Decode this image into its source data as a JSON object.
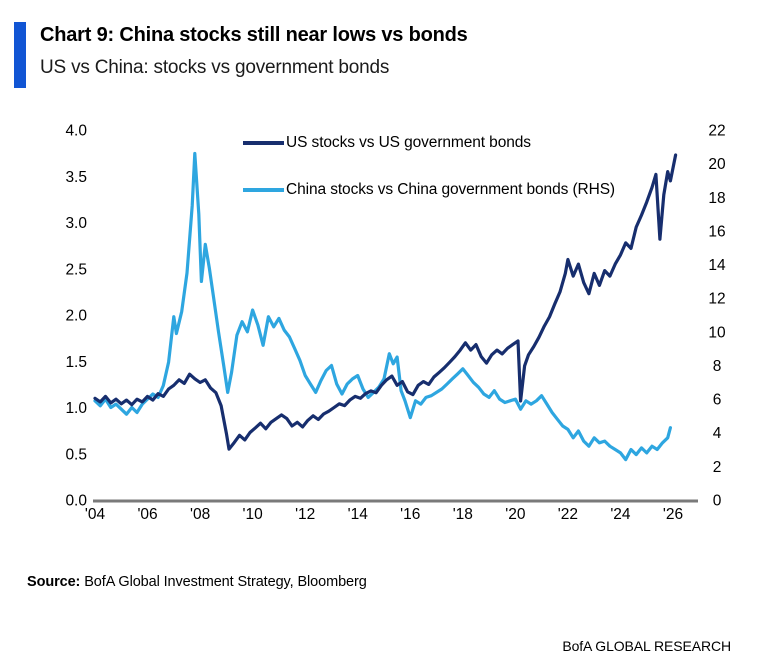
{
  "header": {
    "title": "Chart 9: China stocks still near lows vs bonds",
    "subtitle": "US vs China: stocks vs government bonds",
    "accent_color": "#1155D4"
  },
  "chart_data": {
    "type": "line",
    "grid": false,
    "legend_position": "top-center",
    "axis_line_color": "#7a7a7a",
    "left_axis": {
      "range": [
        0,
        4
      ],
      "ticks": [
        {
          "label": "0.0",
          "value": 0.0
        },
        {
          "label": "0.5",
          "value": 0.5
        },
        {
          "label": "1.0",
          "value": 1.0
        },
        {
          "label": "1.5",
          "value": 1.5
        },
        {
          "label": "2.0",
          "value": 2.0
        },
        {
          "label": "2.5",
          "value": 2.5
        },
        {
          "label": "3.0",
          "value": 3.0
        },
        {
          "label": "3.5",
          "value": 3.5
        },
        {
          "label": "4.0",
          "value": 4.0
        }
      ]
    },
    "right_axis": {
      "range": [
        0,
        22
      ],
      "ticks": [
        {
          "label": "0",
          "value": 0
        },
        {
          "label": "2",
          "value": 2
        },
        {
          "label": "4",
          "value": 4
        },
        {
          "label": "6",
          "value": 6
        },
        {
          "label": "8",
          "value": 8
        },
        {
          "label": "10",
          "value": 10
        },
        {
          "label": "12",
          "value": 12
        },
        {
          "label": "14",
          "value": 14
        },
        {
          "label": "16",
          "value": 16
        },
        {
          "label": "18",
          "value": 18
        },
        {
          "label": "20",
          "value": 20
        },
        {
          "label": "22",
          "value": 22
        }
      ]
    },
    "x_axis": {
      "range": [
        2004,
        2026
      ],
      "ticks": [
        {
          "label": "'04",
          "year": 2004
        },
        {
          "label": "'06",
          "year": 2006
        },
        {
          "label": "'08",
          "year": 2008
        },
        {
          "label": "'10",
          "year": 2010
        },
        {
          "label": "'12",
          "year": 2012
        },
        {
          "label": "'14",
          "year": 2014
        },
        {
          "label": "'16",
          "year": 2016
        },
        {
          "label": "'18",
          "year": 2018
        },
        {
          "label": "'20",
          "year": 2020
        },
        {
          "label": "'22",
          "year": 2022
        },
        {
          "label": "'24",
          "year": 2024
        },
        {
          "label": "'26",
          "year": 2026
        }
      ]
    },
    "series": [
      {
        "id": "us-stocks-vs-us-government-bonds",
        "name": "US stocks vs US government bonds",
        "axis": "left",
        "color": "#172E6E",
        "points": [
          [
            2004.0,
            1.1
          ],
          [
            2004.2,
            1.06
          ],
          [
            2004.4,
            1.12
          ],
          [
            2004.6,
            1.05
          ],
          [
            2004.8,
            1.09
          ],
          [
            2005.0,
            1.04
          ],
          [
            2005.2,
            1.08
          ],
          [
            2005.4,
            1.03
          ],
          [
            2005.6,
            1.09
          ],
          [
            2005.8,
            1.06
          ],
          [
            2006.0,
            1.12
          ],
          [
            2006.2,
            1.08
          ],
          [
            2006.4,
            1.15
          ],
          [
            2006.6,
            1.12
          ],
          [
            2006.8,
            1.2
          ],
          [
            2007.0,
            1.24
          ],
          [
            2007.2,
            1.3
          ],
          [
            2007.4,
            1.26
          ],
          [
            2007.6,
            1.36
          ],
          [
            2007.8,
            1.31
          ],
          [
            2008.0,
            1.27
          ],
          [
            2008.2,
            1.3
          ],
          [
            2008.4,
            1.21
          ],
          [
            2008.6,
            1.16
          ],
          [
            2008.8,
            1.02
          ],
          [
            2009.0,
            0.72
          ],
          [
            2009.1,
            0.55
          ],
          [
            2009.3,
            0.62
          ],
          [
            2009.5,
            0.7
          ],
          [
            2009.7,
            0.65
          ],
          [
            2009.9,
            0.73
          ],
          [
            2010.1,
            0.78
          ],
          [
            2010.3,
            0.83
          ],
          [
            2010.5,
            0.77
          ],
          [
            2010.7,
            0.84
          ],
          [
            2010.9,
            0.88
          ],
          [
            2011.1,
            0.92
          ],
          [
            2011.3,
            0.88
          ],
          [
            2011.5,
            0.8
          ],
          [
            2011.7,
            0.84
          ],
          [
            2011.9,
            0.79
          ],
          [
            2012.1,
            0.86
          ],
          [
            2012.3,
            0.91
          ],
          [
            2012.5,
            0.87
          ],
          [
            2012.7,
            0.93
          ],
          [
            2012.9,
            0.96
          ],
          [
            2013.1,
            1.0
          ],
          [
            2013.3,
            1.04
          ],
          [
            2013.5,
            1.02
          ],
          [
            2013.7,
            1.08
          ],
          [
            2013.9,
            1.12
          ],
          [
            2014.1,
            1.1
          ],
          [
            2014.3,
            1.15
          ],
          [
            2014.5,
            1.18
          ],
          [
            2014.7,
            1.16
          ],
          [
            2014.9,
            1.24
          ],
          [
            2015.1,
            1.3
          ],
          [
            2015.3,
            1.34
          ],
          [
            2015.5,
            1.24
          ],
          [
            2015.7,
            1.28
          ],
          [
            2015.9,
            1.17
          ],
          [
            2016.1,
            1.14
          ],
          [
            2016.3,
            1.24
          ],
          [
            2016.5,
            1.28
          ],
          [
            2016.7,
            1.25
          ],
          [
            2016.9,
            1.33
          ],
          [
            2017.1,
            1.38
          ],
          [
            2017.3,
            1.43
          ],
          [
            2017.5,
            1.49
          ],
          [
            2017.7,
            1.55
          ],
          [
            2017.9,
            1.62
          ],
          [
            2018.1,
            1.7
          ],
          [
            2018.3,
            1.62
          ],
          [
            2018.5,
            1.68
          ],
          [
            2018.7,
            1.55
          ],
          [
            2018.9,
            1.48
          ],
          [
            2019.1,
            1.57
          ],
          [
            2019.3,
            1.62
          ],
          [
            2019.5,
            1.58
          ],
          [
            2019.7,
            1.64
          ],
          [
            2019.9,
            1.68
          ],
          [
            2020.1,
            1.72
          ],
          [
            2020.2,
            1.07
          ],
          [
            2020.35,
            1.45
          ],
          [
            2020.5,
            1.57
          ],
          [
            2020.7,
            1.66
          ],
          [
            2020.9,
            1.76
          ],
          [
            2021.1,
            1.88
          ],
          [
            2021.3,
            1.98
          ],
          [
            2021.5,
            2.12
          ],
          [
            2021.7,
            2.25
          ],
          [
            2021.9,
            2.45
          ],
          [
            2022.0,
            2.6
          ],
          [
            2022.2,
            2.42
          ],
          [
            2022.4,
            2.55
          ],
          [
            2022.6,
            2.35
          ],
          [
            2022.8,
            2.23
          ],
          [
            2023.0,
            2.45
          ],
          [
            2023.2,
            2.32
          ],
          [
            2023.4,
            2.48
          ],
          [
            2023.6,
            2.42
          ],
          [
            2023.8,
            2.55
          ],
          [
            2024.0,
            2.65
          ],
          [
            2024.2,
            2.78
          ],
          [
            2024.4,
            2.72
          ],
          [
            2024.6,
            2.95
          ],
          [
            2024.8,
            3.08
          ],
          [
            2025.0,
            3.22
          ],
          [
            2025.2,
            3.38
          ],
          [
            2025.35,
            3.52
          ],
          [
            2025.5,
            2.82
          ],
          [
            2025.65,
            3.3
          ],
          [
            2025.8,
            3.55
          ],
          [
            2025.9,
            3.45
          ],
          [
            2026.1,
            3.73
          ]
        ]
      },
      {
        "id": "china-stocks-vs-china-government-bonds",
        "name": "China stocks vs China government bonds (RHS)",
        "axis": "right",
        "color": "#2EA6E0",
        "points": [
          [
            2004.0,
            5.9
          ],
          [
            2004.2,
            5.6
          ],
          [
            2004.4,
            6.0
          ],
          [
            2004.6,
            5.5
          ],
          [
            2004.8,
            5.7
          ],
          [
            2005.0,
            5.4
          ],
          [
            2005.2,
            5.1
          ],
          [
            2005.4,
            5.5
          ],
          [
            2005.6,
            5.2
          ],
          [
            2005.8,
            5.7
          ],
          [
            2006.0,
            6.0
          ],
          [
            2006.2,
            6.3
          ],
          [
            2006.4,
            6.1
          ],
          [
            2006.6,
            6.8
          ],
          [
            2006.8,
            8.2
          ],
          [
            2007.0,
            10.9
          ],
          [
            2007.1,
            9.9
          ],
          [
            2007.3,
            11.2
          ],
          [
            2007.5,
            13.5
          ],
          [
            2007.7,
            17.5
          ],
          [
            2007.8,
            20.6
          ],
          [
            2007.95,
            17.0
          ],
          [
            2008.05,
            13.0
          ],
          [
            2008.2,
            15.2
          ],
          [
            2008.35,
            13.8
          ],
          [
            2008.5,
            12.2
          ],
          [
            2008.7,
            10.0
          ],
          [
            2008.9,
            8.0
          ],
          [
            2009.05,
            6.4
          ],
          [
            2009.2,
            7.6
          ],
          [
            2009.4,
            9.8
          ],
          [
            2009.6,
            10.6
          ],
          [
            2009.8,
            10.0
          ],
          [
            2010.0,
            11.3
          ],
          [
            2010.2,
            10.4
          ],
          [
            2010.4,
            9.2
          ],
          [
            2010.6,
            10.9
          ],
          [
            2010.8,
            10.3
          ],
          [
            2011.0,
            10.8
          ],
          [
            2011.2,
            10.1
          ],
          [
            2011.4,
            9.7
          ],
          [
            2011.6,
            9.0
          ],
          [
            2011.8,
            8.3
          ],
          [
            2012.0,
            7.4
          ],
          [
            2012.2,
            6.9
          ],
          [
            2012.4,
            6.4
          ],
          [
            2012.6,
            7.1
          ],
          [
            2012.8,
            7.7
          ],
          [
            2013.0,
            8.0
          ],
          [
            2013.2,
            6.9
          ],
          [
            2013.4,
            6.3
          ],
          [
            2013.6,
            6.9
          ],
          [
            2013.8,
            7.2
          ],
          [
            2014.0,
            7.4
          ],
          [
            2014.2,
            6.6
          ],
          [
            2014.4,
            6.1
          ],
          [
            2014.6,
            6.4
          ],
          [
            2014.8,
            6.7
          ],
          [
            2015.0,
            7.2
          ],
          [
            2015.2,
            8.7
          ],
          [
            2015.35,
            8.1
          ],
          [
            2015.5,
            8.5
          ],
          [
            2015.65,
            6.5
          ],
          [
            2015.8,
            5.9
          ],
          [
            2016.0,
            4.9
          ],
          [
            2016.2,
            5.9
          ],
          [
            2016.4,
            5.7
          ],
          [
            2016.6,
            6.1
          ],
          [
            2016.8,
            6.2
          ],
          [
            2017.0,
            6.4
          ],
          [
            2017.2,
            6.6
          ],
          [
            2017.4,
            6.9
          ],
          [
            2017.6,
            7.2
          ],
          [
            2017.8,
            7.5
          ],
          [
            2018.0,
            7.8
          ],
          [
            2018.2,
            7.4
          ],
          [
            2018.4,
            7.0
          ],
          [
            2018.6,
            6.7
          ],
          [
            2018.8,
            6.3
          ],
          [
            2019.0,
            6.1
          ],
          [
            2019.2,
            6.5
          ],
          [
            2019.4,
            6.0
          ],
          [
            2019.6,
            5.8
          ],
          [
            2019.8,
            5.9
          ],
          [
            2020.0,
            6.0
          ],
          [
            2020.2,
            5.4
          ],
          [
            2020.4,
            5.9
          ],
          [
            2020.6,
            5.7
          ],
          [
            2020.8,
            5.9
          ],
          [
            2021.0,
            6.2
          ],
          [
            2021.2,
            5.7
          ],
          [
            2021.4,
            5.2
          ],
          [
            2021.6,
            4.8
          ],
          [
            2021.8,
            4.4
          ],
          [
            2022.0,
            4.2
          ],
          [
            2022.2,
            3.7
          ],
          [
            2022.4,
            4.1
          ],
          [
            2022.6,
            3.5
          ],
          [
            2022.8,
            3.2
          ],
          [
            2023.0,
            3.7
          ],
          [
            2023.2,
            3.4
          ],
          [
            2023.4,
            3.5
          ],
          [
            2023.6,
            3.2
          ],
          [
            2023.8,
            3.0
          ],
          [
            2024.0,
            2.8
          ],
          [
            2024.2,
            2.4
          ],
          [
            2024.4,
            3.0
          ],
          [
            2024.6,
            2.7
          ],
          [
            2024.8,
            3.1
          ],
          [
            2025.0,
            2.8
          ],
          [
            2025.2,
            3.2
          ],
          [
            2025.4,
            3.0
          ],
          [
            2025.6,
            3.4
          ],
          [
            2025.8,
            3.7
          ],
          [
            2025.9,
            4.3
          ]
        ]
      }
    ]
  },
  "footer": {
    "source_label": "Source:",
    "source_text": " BofA Global Investment Strategy, Bloomberg",
    "watermark": "BofA GLOBAL RESEARCH"
  }
}
